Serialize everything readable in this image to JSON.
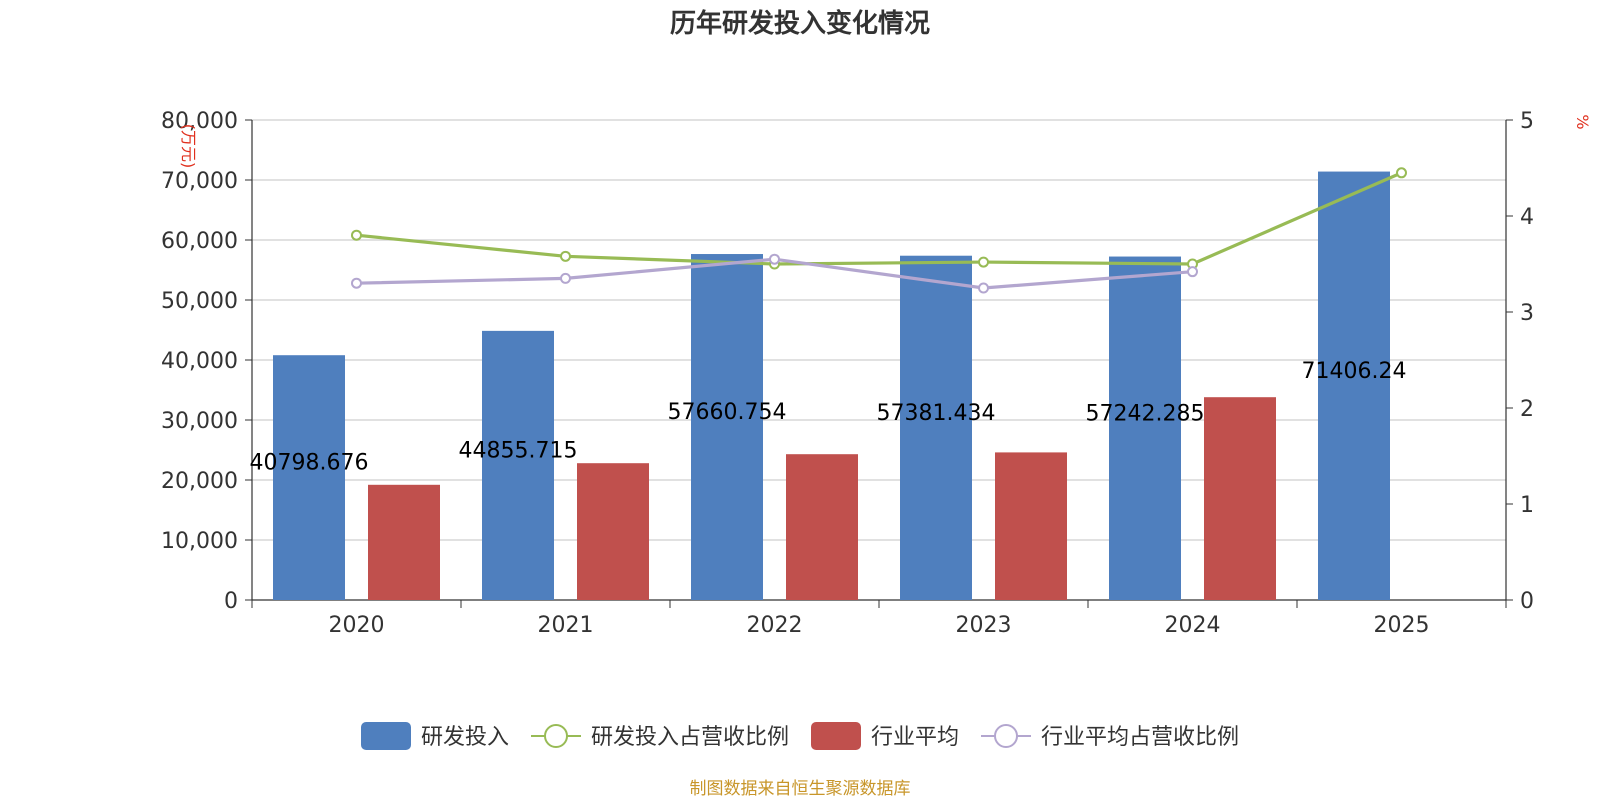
{
  "chart_data": {
    "type": "bar",
    "title": "历年研发投入变化情况",
    "categories": [
      "2020",
      "2021",
      "2022",
      "2023",
      "2024",
      "2025"
    ],
    "left_axis": {
      "unit": "(万元)",
      "ylim": [
        0,
        80000
      ],
      "ticks": [
        "0",
        "10,000",
        "20,000",
        "30,000",
        "40,000",
        "50,000",
        "60,000",
        "70,000",
        "80,000"
      ]
    },
    "right_axis": {
      "unit": "%",
      "ylim": [
        0,
        5
      ],
      "ticks": [
        "0",
        "1",
        "2",
        "3",
        "4",
        "5"
      ]
    },
    "series": [
      {
        "name": "研发投入",
        "kind": "bar",
        "axis": "left",
        "color": "#4f7fbe",
        "values": [
          40798.676,
          44855.715,
          57660.754,
          57381.434,
          57242.285,
          71406.24
        ],
        "labels": [
          "40798.676",
          "44855.715",
          "57660.754",
          "57381.434",
          "57242.285",
          "71406.24"
        ]
      },
      {
        "name": "研发投入占营收比例",
        "kind": "line",
        "axis": "right",
        "color": "#98bb55",
        "values": [
          3.8,
          3.58,
          3.5,
          3.52,
          3.5,
          4.45
        ]
      },
      {
        "name": "行业平均",
        "kind": "bar",
        "axis": "left",
        "color": "#c0504d",
        "values": [
          19200,
          22800,
          24300,
          24600,
          33800,
          null
        ]
      },
      {
        "name": "行业平均占营收比例",
        "kind": "line",
        "axis": "right",
        "color": "#b3a6cf",
        "values": [
          3.3,
          3.35,
          3.55,
          3.25,
          3.42,
          null
        ]
      }
    ],
    "legend_position": "bottom",
    "source": "制图数据来自恒生聚源数据库"
  }
}
